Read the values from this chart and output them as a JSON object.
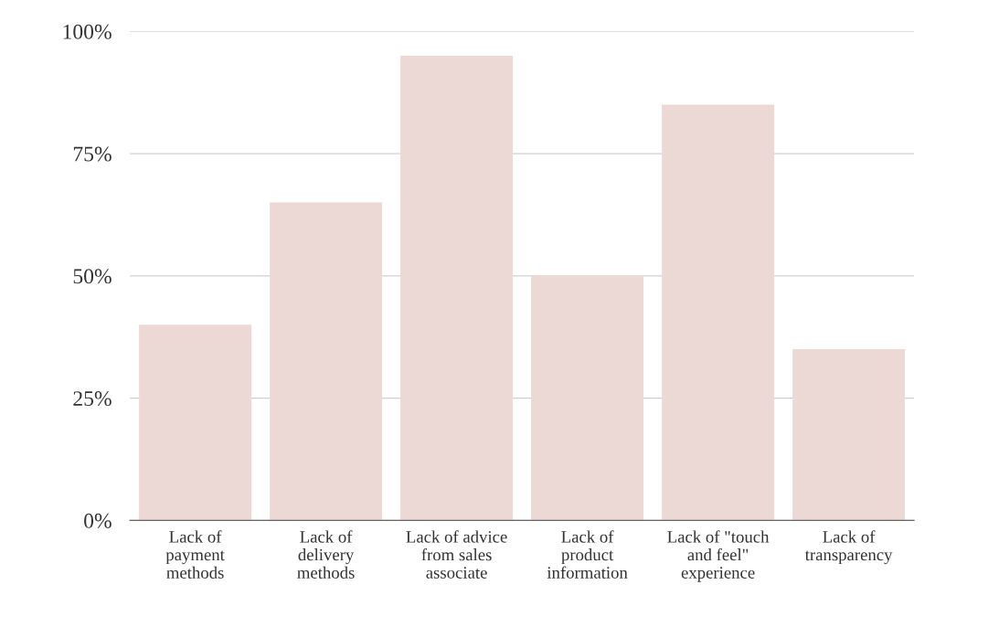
{
  "chart_data": {
    "type": "bar",
    "categories": [
      "Lack of\npayment\nmethods",
      "Lack of\ndelivery\nmethods",
      "Lack of advice\nfrom sales\nassociate",
      "Lack of\nproduct\ninformation",
      "Lack of \"touch\nand feel\"\nexperience",
      "Lack of\ntransparency"
    ],
    "values": [
      40,
      65,
      95,
      50,
      85,
      35
    ],
    "color": "#ecd9d6",
    "ylim": [
      0,
      100
    ],
    "yticks": [
      {
        "value": 0,
        "label": "0%"
      },
      {
        "value": 25,
        "label": "25%"
      },
      {
        "value": 50,
        "label": "50%"
      },
      {
        "value": 75,
        "label": "75%"
      },
      {
        "value": 100,
        "label": "100%"
      }
    ],
    "grid": "y"
  }
}
